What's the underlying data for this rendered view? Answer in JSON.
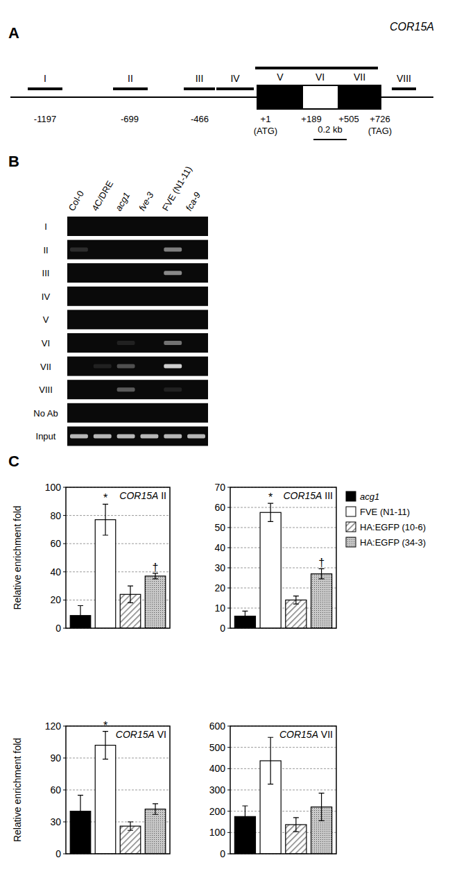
{
  "diagram": {
    "label": "A",
    "gene": "COR15A",
    "fragments": [
      "I",
      "II",
      "III",
      "IV",
      "V",
      "VI",
      "VII",
      "VIII"
    ],
    "coordinates": [
      "-1197",
      "-699",
      "-466",
      "+1",
      "+189",
      "+505",
      "+726"
    ],
    "codons": [
      "(ATG)",
      "(TAG)"
    ],
    "scale_bar": "0.2 kb"
  },
  "gel": {
    "label": "B",
    "lanes": [
      "Col-0",
      "4C/DRE",
      "acg1",
      "fve-3",
      "FVE (N1-11)",
      "fca-9"
    ],
    "rows": [
      {
        "label": "I",
        "bands": [
          0,
          0,
          0,
          0,
          0,
          0
        ]
      },
      {
        "label": "II",
        "bands": [
          0.15,
          0,
          0,
          0,
          0.5,
          0
        ]
      },
      {
        "label": "III",
        "bands": [
          0,
          0,
          0,
          0,
          0.55,
          0
        ]
      },
      {
        "label": "IV",
        "bands": [
          0,
          0,
          0,
          0,
          0,
          0
        ]
      },
      {
        "label": "V",
        "bands": [
          0,
          0,
          0,
          0,
          0,
          0
        ]
      },
      {
        "label": "VI",
        "bands": [
          0,
          0,
          0.1,
          0,
          0.45,
          0
        ]
      },
      {
        "label": "VII",
        "bands": [
          0,
          0.1,
          0.3,
          0,
          0.85,
          0
        ]
      },
      {
        "label": "VIII",
        "bands": [
          0,
          0,
          0.35,
          0,
          0.1,
          0
        ]
      },
      {
        "label": "No Ab",
        "bands": [
          0,
          0,
          0,
          0,
          0,
          0
        ]
      },
      {
        "label": "Input",
        "bands": [
          0.75,
          0.75,
          0.75,
          0.75,
          0.75,
          0.75
        ]
      }
    ]
  },
  "panel_c": {
    "label": "C"
  },
  "chart_data": [
    {
      "type": "bar",
      "title": "COR15A II",
      "ylabel": "Relative enrichment fold",
      "categories": [
        null
      ],
      "ylim": [
        0,
        100
      ],
      "yticks": [
        0,
        20,
        40,
        60,
        80,
        100
      ],
      "grid": true,
      "series": [
        {
          "color": "#000000",
          "values": [
            9
          ],
          "errors": [
            7
          ],
          "annotations": [
            null
          ]
        },
        {
          "color": "#ffffff",
          "values": [
            77
          ],
          "errors": [
            11
          ],
          "annotations": [
            "*"
          ]
        },
        {
          "color": "#7f7f7f",
          "values": [
            24
          ],
          "errors": [
            6
          ],
          "annotations": [
            null
          ]
        },
        {
          "color": "#c8c8c8",
          "values": [
            37
          ],
          "errors": [
            2
          ],
          "annotations": [
            "†"
          ]
        }
      ]
    },
    {
      "type": "bar",
      "title": "COR15A III",
      "categories": [
        null
      ],
      "ylim": [
        0,
        70
      ],
      "yticks": [
        0,
        10,
        20,
        30,
        40,
        50,
        60,
        70
      ],
      "grid": true,
      "legend": "right",
      "series": [
        {
          "name": "acg1",
          "color": "#000000",
          "values": [
            6
          ],
          "errors": [
            2.5
          ],
          "annotations": [
            null
          ]
        },
        {
          "name": "FVE (N1-11)",
          "color": "#ffffff",
          "values": [
            57.5
          ],
          "errors": [
            4.5
          ],
          "annotations": [
            "*"
          ]
        },
        {
          "name": "HA:EGFP (10-6)",
          "color": "#7f7f7f",
          "values": [
            14
          ],
          "errors": [
            2
          ],
          "annotations": [
            null
          ]
        },
        {
          "name": "HA:EGFP (34-3)",
          "color": "#c8c8c8",
          "values": [
            27
          ],
          "errors": [
            2.5
          ],
          "annotations": [
            "†"
          ]
        }
      ]
    },
    {
      "type": "bar",
      "title": "COR15A VI",
      "ylabel": "Relative enrichment fold",
      "categories": [
        null
      ],
      "ylim": [
        0,
        120
      ],
      "yticks": [
        0,
        30,
        60,
        90,
        120
      ],
      "grid": true,
      "series": [
        {
          "color": "#000000",
          "values": [
            40
          ],
          "errors": [
            15
          ],
          "annotations": [
            null
          ]
        },
        {
          "color": "#ffffff",
          "values": [
            102
          ],
          "errors": [
            13
          ],
          "annotations": [
            "*"
          ]
        },
        {
          "color": "#7f7f7f",
          "values": [
            26
          ],
          "errors": [
            4
          ],
          "annotations": [
            null
          ]
        },
        {
          "color": "#c8c8c8",
          "values": [
            42
          ],
          "errors": [
            5
          ],
          "annotations": [
            null
          ]
        }
      ]
    },
    {
      "type": "bar",
      "title": "COR15A VII",
      "categories": [
        null
      ],
      "ylim": [
        0,
        600
      ],
      "yticks": [
        0,
        100,
        200,
        300,
        400,
        500,
        600
      ],
      "grid": true,
      "series": [
        {
          "color": "#000000",
          "values": [
            175
          ],
          "errors": [
            50
          ],
          "annotations": [
            null
          ]
        },
        {
          "color": "#ffffff",
          "values": [
            437
          ],
          "errors": [
            110
          ],
          "annotations": [
            null
          ]
        },
        {
          "color": "#7f7f7f",
          "values": [
            137
          ],
          "errors": [
            33
          ],
          "annotations": [
            null
          ]
        },
        {
          "color": "#c8c8c8",
          "values": [
            220
          ],
          "errors": [
            65
          ],
          "annotations": [
            null
          ]
        }
      ]
    }
  ]
}
